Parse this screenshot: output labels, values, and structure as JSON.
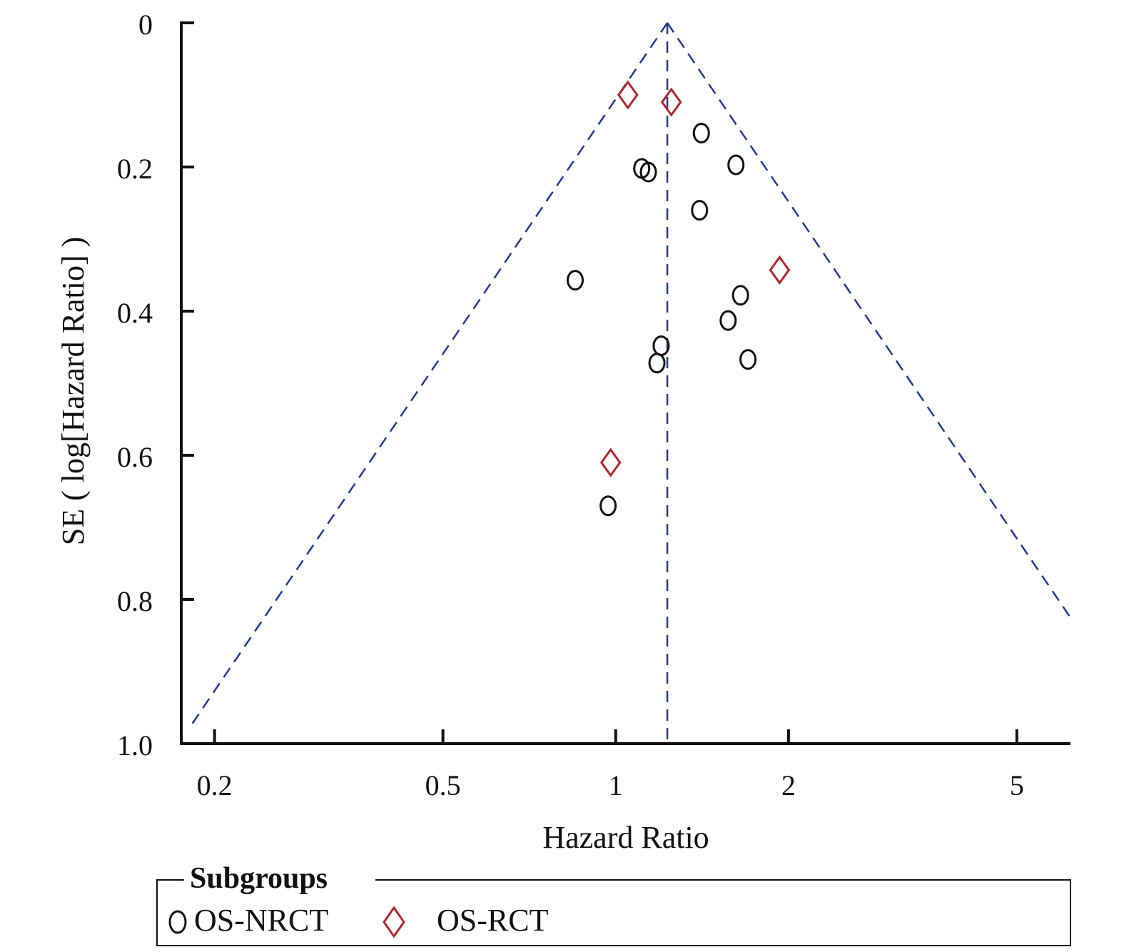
{
  "chart_data": {
    "type": "scatter",
    "title": "",
    "xlabel": "Hazard Ratio",
    "ylabel": "SE ( log[Hazard Ratio] )",
    "x_scale": "log",
    "xlim": [
      0.175,
      6.2
    ],
    "ylim": [
      0,
      1.0
    ],
    "y_inverted": true,
    "x_ticks": [
      0.2,
      0.5,
      1,
      2,
      5
    ],
    "x_tick_labels": [
      "0.2",
      "0.5",
      "1",
      "2",
      "5"
    ],
    "y_ticks": [
      0,
      0.2,
      0.4,
      0.6,
      0.8,
      1.0
    ],
    "y_tick_labels": [
      "0",
      "0.2",
      "0.4",
      "0.6",
      "0.8",
      "1.0"
    ],
    "pooled_hr": 1.23,
    "funnel_color": "#1f3a93",
    "legend": {
      "title": "Subgroups",
      "placement": "bottom"
    },
    "series": [
      {
        "name": "OS-NRCT",
        "marker": "circle",
        "color": "#111111",
        "points": [
          {
            "x": 1.41,
            "y": 0.153
          },
          {
            "x": 1.62,
            "y": 0.197
          },
          {
            "x": 1.11,
            "y": 0.202
          },
          {
            "x": 1.14,
            "y": 0.207
          },
          {
            "x": 1.4,
            "y": 0.26
          },
          {
            "x": 0.85,
            "y": 0.357
          },
          {
            "x": 1.65,
            "y": 0.378
          },
          {
            "x": 1.57,
            "y": 0.413
          },
          {
            "x": 1.2,
            "y": 0.448
          },
          {
            "x": 1.18,
            "y": 0.472
          },
          {
            "x": 1.7,
            "y": 0.467
          },
          {
            "x": 0.97,
            "y": 0.67
          }
        ]
      },
      {
        "name": "OS-RCT",
        "marker": "diamond",
        "color": "#b0262e",
        "points": [
          {
            "x": 1.05,
            "y": 0.1
          },
          {
            "x": 1.25,
            "y": 0.11
          },
          {
            "x": 1.93,
            "y": 0.343
          },
          {
            "x": 0.98,
            "y": 0.61
          }
        ]
      }
    ]
  }
}
